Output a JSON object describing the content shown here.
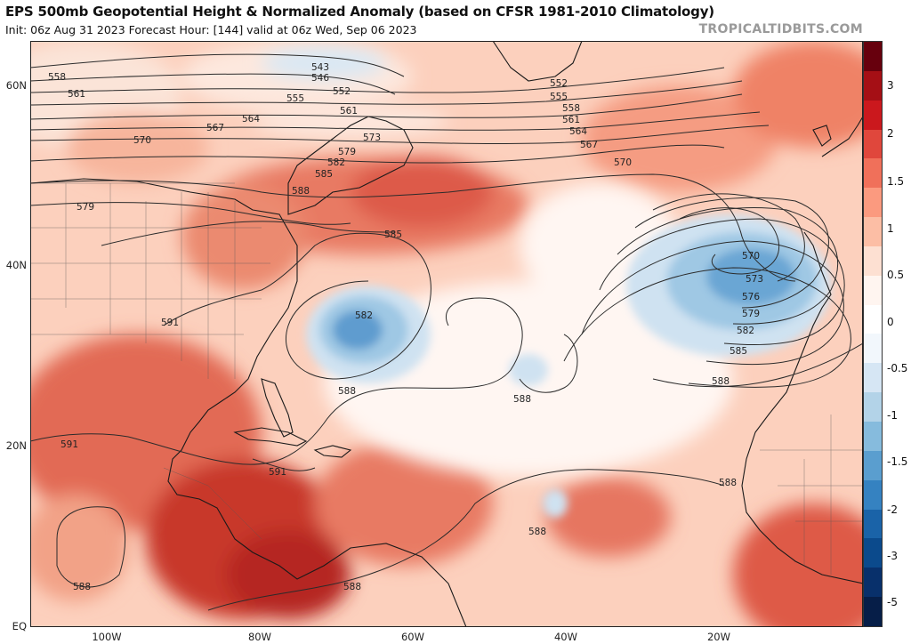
{
  "header": {
    "title": "EPS 500mb Geopotential Height & Normalized Anomaly (based on CFSR 1981-2010 Climatology)",
    "subtitle": "Init: 06z Aug 31 2023   Forecast Hour: [144]   valid at 06z Wed, Sep 06 2023",
    "watermark": "TROPICALTIDBITS.COM"
  },
  "map": {
    "lat_labels": [
      "60N",
      "40N",
      "20N",
      "EQ"
    ],
    "lon_labels": [
      "100W",
      "80W",
      "60W",
      "40W",
      "20W"
    ],
    "contour_labels": [
      "558",
      "561",
      "564",
      "567",
      "570",
      "543",
      "546",
      "552",
      "555",
      "561",
      "573",
      "579",
      "582",
      "585",
      "588",
      "579",
      "591",
      "585",
      "582",
      "588",
      "588",
      "591",
      "591",
      "588",
      "588",
      "552",
      "555",
      "558",
      "561",
      "564",
      "567",
      "570",
      "570",
      "573",
      "576",
      "579",
      "582",
      "585",
      "588",
      "588",
      "588"
    ]
  },
  "colorbar": {
    "labels": [
      "3",
      "2",
      "1.5",
      "1",
      "0.5",
      "0",
      "-0.5",
      "-1",
      "-1.5",
      "-2",
      "-3",
      "-5"
    ],
    "colors": [
      "#67000d",
      "#a50f15",
      "#cb181d",
      "#e0473c",
      "#f0705a",
      "#fb9a7f",
      "#fcbea5",
      "#fde0d2",
      "#fff5f0",
      "#ffffff",
      "#f2f7fc",
      "#d6e6f4",
      "#b3d3e8",
      "#86bbdd",
      "#5a9ecf",
      "#3582c1",
      "#1a63a8",
      "#0b4a8c",
      "#08306b",
      "#061e48"
    ]
  }
}
